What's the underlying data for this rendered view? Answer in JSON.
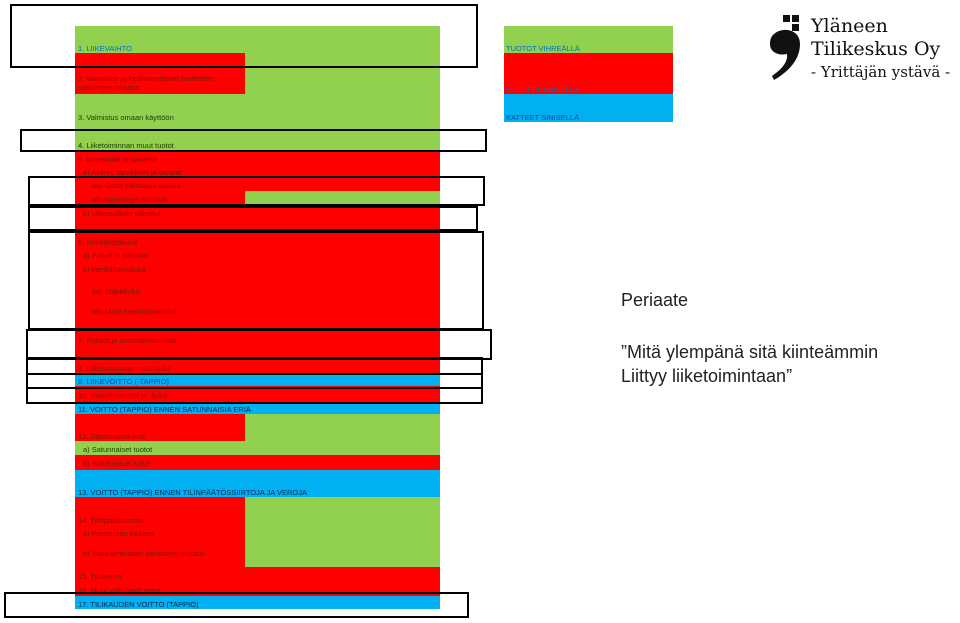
{
  "statement": {
    "rows": {
      "r1": "1. LIIKEVAIHTO",
      "r2": "2. Valmiiden ja keskeneräisten tuotteiden varastojen muutos",
      "r3": "3. Valmistus omaan käyttöön",
      "r4": "4. Liiketoiminnan muut tuotot",
      "r5": "5. Materiaalit ja palvelut",
      "r5a": "a) Aineet, tarvikkeet ja tavarat",
      "r5aa": "aa) Ostot tilikauden aikana",
      "r5ab": "ab) Varastojen muutos",
      "r5b": "b) Ulkopuoliset palvelut",
      "r6": "6. Henkilöstökulut",
      "r6a": "a) Palkat ja palkkiot",
      "r6b": "b) Henkilösivukulut",
      "r6ba": "ba) Eläkekulut",
      "r6bb": "bb) Muut henkilösivukulut",
      "r7": "7. Poistot ja arvonalentumiset",
      "r8": "8. Liiketoiminnan muut kulut",
      "r9": "9. LIIKEVOITTO (-TAPPIO)",
      "r10": "10. Rahoitustuotot ja -kulut",
      "r11": "11. VOITTO (TAPPIO) ENNEN SATUNNAISIA ERIÄ",
      "r12": "12. Satunnaiset erät",
      "r12a": "a) Satunnaiset tuotot",
      "r12b": "b) Satunnaiset kulut",
      "r13": "13. VOITTO (TAPPIO) ENNEN TILINPÄÄTÖSSIIRTOJA JA VEROJA",
      "r14": "14. Tilinpäätössiirrot",
      "r14a": "a) Poistoeron muutos",
      "r14b": "b) Vapaaehtoisten varausten muutos",
      "r15": "15. Tuloverot",
      "r16": "16. Muut välittömät verot",
      "r17": "17. TILIKAUDEN VOITTO (TAPPIO)"
    }
  },
  "legend": {
    "green": "TUOTOT VIHREÄLLÄ",
    "red": "KULUT PUNAISELLA",
    "blue": "KATTEET SINISELLÄ"
  },
  "colors": {
    "green": "#92d050",
    "red": "#ff0000",
    "blue": "#00b0f0"
  },
  "principle": {
    "heading": "Periaate",
    "line1": "”Mitä ylempänä sitä kiinteämmin",
    "line2": "Liittyy liiketoimintaan”"
  },
  "logo": {
    "line1": "Yläneen",
    "line2": "Tilikeskus Oy",
    "line3": "- Yrittäjän ystävä -"
  }
}
